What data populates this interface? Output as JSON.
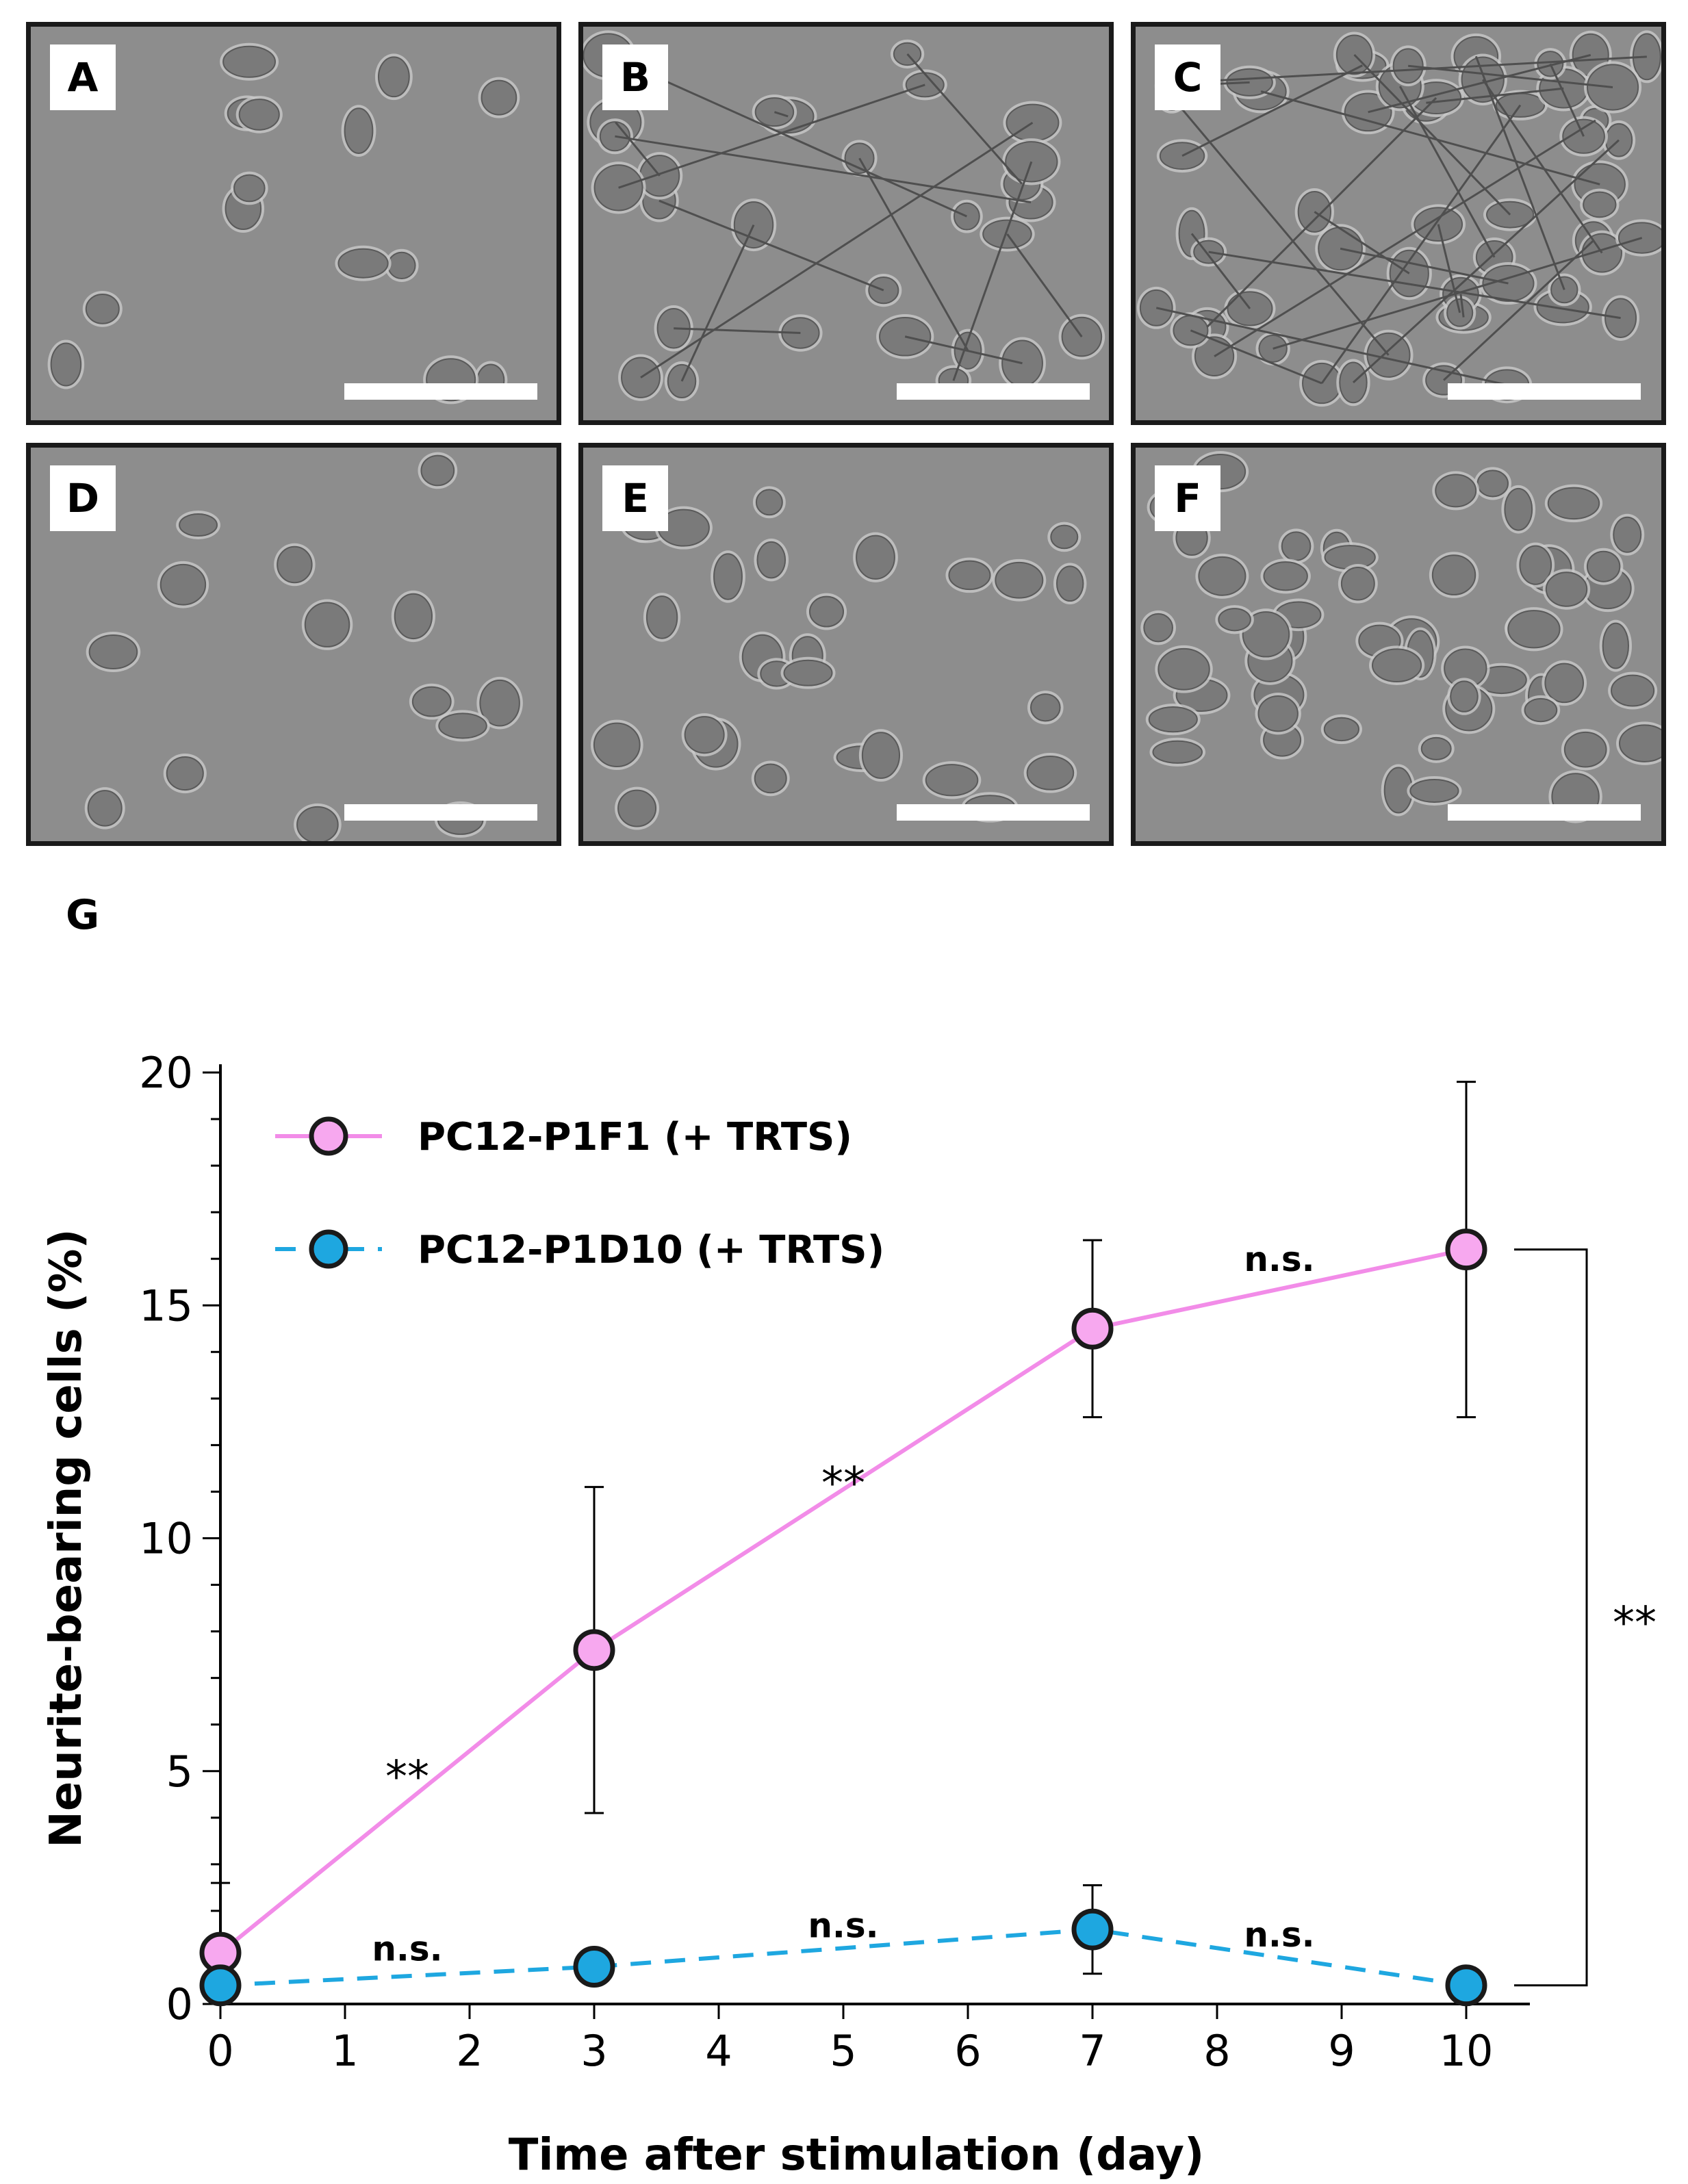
{
  "panels": [
    {
      "label": "A",
      "cells": "sparse",
      "neurites": false
    },
    {
      "label": "B",
      "cells": "moderate",
      "neurites": true
    },
    {
      "label": "C",
      "cells": "dense",
      "neurites": true
    },
    {
      "label": "D",
      "cells": "sparse",
      "neurites": false
    },
    {
      "label": "E",
      "cells": "moderate",
      "neurites": false
    },
    {
      "label": "F",
      "cells": "dense",
      "neurites": false
    }
  ],
  "colors": {
    "pink_series": "#f28ce8",
    "pink_marker": "#f7a8ef",
    "blue_series": "#1ea7e0",
    "blue_marker": "#1ea7e0",
    "micrograph_bg": "#8d8d8d"
  },
  "chart_data": {
    "panel_label": "G",
    "type": "line",
    "xlabel": "Time after stimulation (day)",
    "ylabel": "Neurite-bearing cells (%)",
    "xlim": [
      0,
      10
    ],
    "ylim": [
      0,
      20
    ],
    "xticks": [
      "0",
      "1",
      "2",
      "3",
      "4",
      "5",
      "6",
      "7",
      "8",
      "9",
      "10"
    ],
    "yticks": [
      "0",
      "5",
      "10",
      "15",
      "20"
    ],
    "legend_position": "top-left",
    "series": [
      {
        "name": "PC12-P1F1 (+ TRTS)",
        "style": "solid",
        "points": [
          {
            "x": 0,
            "y": 1.1,
            "err": 1.5
          },
          {
            "x": 3,
            "y": 7.6,
            "err": 3.5
          },
          {
            "x": 7,
            "y": 14.5,
            "err": 1.9
          },
          {
            "x": 10,
            "y": 16.2,
            "err": 3.6
          }
        ]
      },
      {
        "name": "PC12-P1D10 (+ TRTS)",
        "style": "dashed",
        "points": [
          {
            "x": 0,
            "y": 0.4,
            "err": 0
          },
          {
            "x": 3,
            "y": 0.8,
            "err": 0
          },
          {
            "x": 7,
            "y": 1.6,
            "err": 0.95
          },
          {
            "x": 10,
            "y": 0.4,
            "err": 0
          }
        ]
      }
    ],
    "annotations": [
      {
        "text": "**",
        "x": 1.5,
        "y": 5.0
      },
      {
        "text": "**",
        "x": 5.0,
        "y": 11.3
      },
      {
        "text": "n.s.",
        "x": 8.5,
        "y": 16.0
      },
      {
        "text": "n.s.",
        "x": 1.5,
        "y": 1.2
      },
      {
        "text": "n.s.",
        "x": 5.0,
        "y": 1.7
      },
      {
        "text": "n.s.",
        "x": 8.5,
        "y": 1.5
      }
    ],
    "bracket_label": "**"
  }
}
